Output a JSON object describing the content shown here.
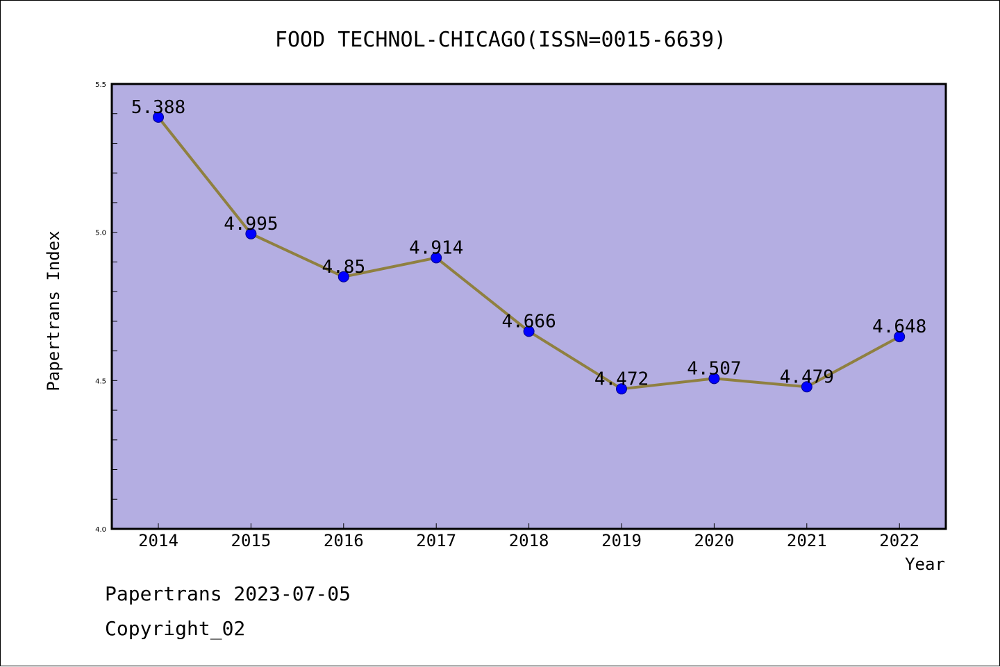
{
  "chart_data": {
    "type": "line",
    "title": "FOOD TECHNOL-CHICAGO(ISSN=0015-6639)",
    "xlabel": "Year",
    "ylabel": "Papertrans Index",
    "x": [
      "2014",
      "2015",
      "2016",
      "2017",
      "2018",
      "2019",
      "2020",
      "2021",
      "2022"
    ],
    "series": [
      {
        "values": [
          5.388,
          4.995,
          4.85,
          4.914,
          4.666,
          4.472,
          4.507,
          4.479,
          4.648
        ],
        "labels": [
          "5.388",
          "4.995",
          "4.85",
          "4.914",
          "4.666",
          "4.472",
          "4.507",
          "4.479",
          "4.648"
        ]
      }
    ],
    "ylim": [
      4.0,
      5.5
    ],
    "y_ticks": [
      "4.0",
      "4.5",
      "5.0",
      "5.5"
    ],
    "grid": false,
    "plot_background": "#b4aee2",
    "line_color": "#8f8040",
    "marker_color": "#0000ff"
  },
  "footer": {
    "line1": "Papertrans 2023-07-05",
    "line2": "Copyright_02"
  }
}
